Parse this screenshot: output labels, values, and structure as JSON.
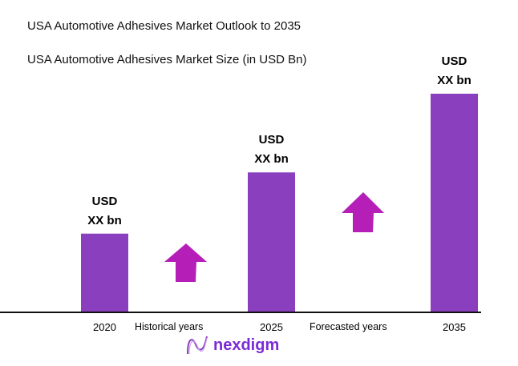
{
  "title": "USA Automotive Adhesives Market Outlook to 2035",
  "subtitle": "USA Automotive Adhesives Market Size (in USD Bn)",
  "chart_data": {
    "type": "bar",
    "title": "USA Automotive Adhesives Market Size (in USD Bn)",
    "categories": [
      "2020",
      "2025",
      "2035"
    ],
    "values_relative_to_2035_percent": [
      36,
      64,
      100
    ],
    "data_labels": [
      [
        "USD",
        "XX bn"
      ],
      [
        "USD",
        "XX bn"
      ],
      [
        "USD",
        "XX bn"
      ]
    ],
    "annotations": [
      "Historical years",
      "Forecasted years"
    ],
    "grid": false,
    "bar_color": "#8a3fbf",
    "arrow_color": "#b51fb8"
  },
  "logo": {
    "text": "nexdigm"
  }
}
